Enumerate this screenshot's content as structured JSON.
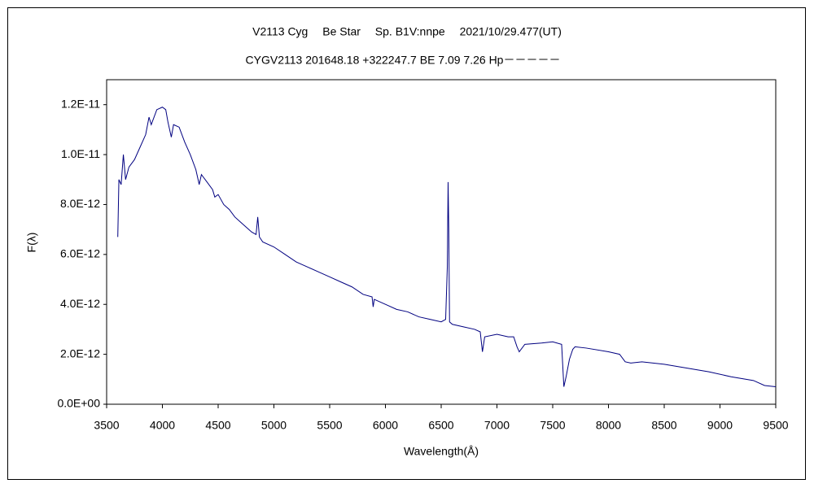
{
  "chart_data": {
    "type": "line",
    "title": "V2113 Cyg　 Be Star　 Sp. B1V:nnpe　 2021/10/29.477(UT)",
    "subtitle": "CYGV2113 201648.18 +322247.7 BE 7.09 7.26 Hp－－－－－",
    "x_label": "Wavelength(Å)",
    "y_label": "F(λ)",
    "x": [
      3600,
      3610,
      3630,
      3650,
      3670,
      3700,
      3750,
      3800,
      3850,
      3880,
      3900,
      3950,
      4000,
      4030,
      4050,
      4080,
      4100,
      4150,
      4200,
      4250,
      4300,
      4330,
      4350,
      4400,
      4450,
      4470,
      4500,
      4550,
      4600,
      4650,
      4700,
      4750,
      4800,
      4840,
      4855,
      4870,
      4900,
      5000,
      5100,
      5200,
      5300,
      5400,
      5500,
      5600,
      5700,
      5800,
      5880,
      5890,
      5900,
      6000,
      6100,
      6200,
      6300,
      6400,
      6500,
      6540,
      6555,
      6562,
      6568,
      6575,
      6600,
      6700,
      6800,
      6850,
      6870,
      6890,
      7000,
      7100,
      7150,
      7180,
      7200,
      7250,
      7400,
      7500,
      7580,
      7600,
      7620,
      7650,
      7680,
      7700,
      7800,
      8000,
      8100,
      8150,
      8200,
      8300,
      8500,
      8700,
      8900,
      9100,
      9300,
      9400,
      9500
    ],
    "series": [
      {
        "color": "#000080",
        "values": [
          6.7e-12,
          9e-12,
          8.8e-12,
          1e-11,
          9e-12,
          9.5e-12,
          9.8e-12,
          1.03e-11,
          1.08e-11,
          1.15e-11,
          1.12e-11,
          1.18e-11,
          1.19e-11,
          1.18e-11,
          1.13e-11,
          1.07e-11,
          1.12e-11,
          1.11e-11,
          1.05e-11,
          1e-11,
          9.4e-12,
          8.8e-12,
          9.2e-12,
          8.9e-12,
          8.6e-12,
          8.3e-12,
          8.4e-12,
          8e-12,
          7.8e-12,
          7.5e-12,
          7.3e-12,
          7.1e-12,
          6.9e-12,
          6.8e-12,
          7.5e-12,
          6.7e-12,
          6.5e-12,
          6.3e-12,
          6e-12,
          5.7e-12,
          5.5e-12,
          5.3e-12,
          5.1e-12,
          4.9e-12,
          4.7e-12,
          4.4e-12,
          4.3e-12,
          3.9e-12,
          4.2e-12,
          4e-12,
          3.8e-12,
          3.7e-12,
          3.5e-12,
          3.4e-12,
          3.3e-12,
          3.4e-12,
          5.5e-12,
          8.9e-12,
          7e-12,
          3.3e-12,
          3.2e-12,
          3.1e-12,
          3e-12,
          2.9e-12,
          2.1e-12,
          2.7e-12,
          2.8e-12,
          2.7e-12,
          2.7e-12,
          2.3e-12,
          2.1e-12,
          2.4e-12,
          2.45e-12,
          2.5e-12,
          2.4e-12,
          7e-13,
          1.1e-12,
          1.8e-12,
          2.2e-12,
          2.3e-12,
          2.25e-12,
          2.1e-12,
          2e-12,
          1.7e-12,
          1.65e-12,
          1.7e-12,
          1.6e-12,
          1.45e-12,
          1.3e-12,
          1.1e-12,
          9.5e-13,
          7.5e-13,
          7e-13
        ]
      }
    ],
    "xlim": [
      3500,
      9500
    ],
    "xticks": [
      3500,
      4000,
      4500,
      5000,
      5500,
      6000,
      6500,
      7000,
      7500,
      8000,
      8500,
      9000,
      9500
    ],
    "ylim": [
      0,
      1.3e-11
    ],
    "yticks": [
      {
        "value": 0,
        "label": "0.0E+00"
      },
      {
        "value": 2e-12,
        "label": "2.0E-12"
      },
      {
        "value": 4e-12,
        "label": "4.0E-12"
      },
      {
        "value": 6e-12,
        "label": "6.0E-12"
      },
      {
        "value": 8e-12,
        "label": "8.0E-12"
      },
      {
        "value": 1e-11,
        "label": "1.0E-11"
      },
      {
        "value": 1.2e-11,
        "label": "1.2E-11"
      }
    ],
    "grid": false
  }
}
